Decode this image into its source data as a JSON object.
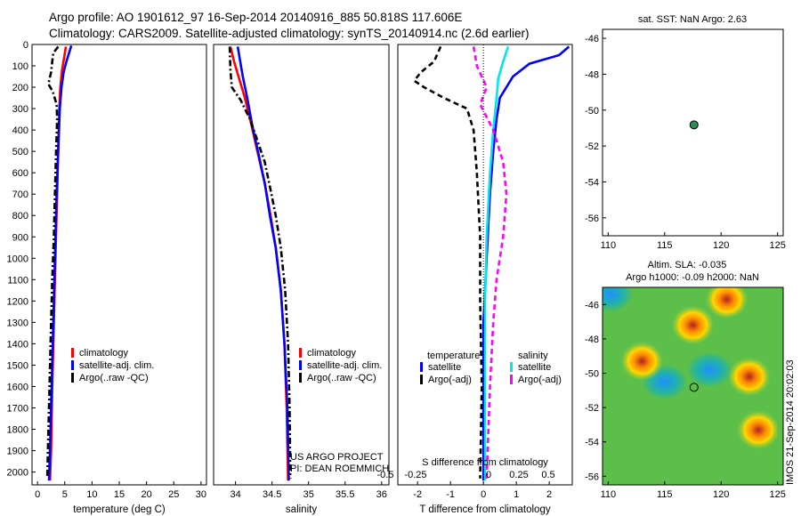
{
  "title_line1": "Argo profile: AO 1901612_97 16-Sep-2014 20140916_885 50.818S 117.606E",
  "title_line2": "Climatology: CARS2009. Satellite-adjusted climatology: synTS_20140914.nc (2.6d earlier)",
  "colors": {
    "climatology": "#ff0000",
    "satellite": "#0000ff",
    "argo": "#000000",
    "sat_salinity": "#00e5ee",
    "argo_salinity": "#ff00ff",
    "float_marker": "#2e8b57"
  },
  "chart_data": [
    {
      "type": "line",
      "panel": "temperature",
      "xlabel": "temperature (deg C)",
      "ylim": [
        2060,
        0
      ],
      "xlim": [
        -1,
        31
      ],
      "xticks": [
        0,
        5,
        10,
        15,
        20,
        25,
        30
      ],
      "yticks": [
        0,
        100,
        200,
        300,
        400,
        500,
        600,
        700,
        800,
        900,
        1000,
        1100,
        1200,
        1300,
        1400,
        1500,
        1600,
        1700,
        1800,
        1900,
        2000
      ],
      "legend": [
        "climatology",
        "satellite-adj. clim.",
        "Argo(..raw -QC)"
      ],
      "series": [
        {
          "name": "climatology",
          "style": "solid",
          "color": "#ff0000",
          "points": [
            [
              5.2,
              10
            ],
            [
              4.9,
              60
            ],
            [
              4.5,
              120
            ],
            [
              4.2,
              200
            ],
            [
              4.0,
              300
            ],
            [
              3.8,
              500
            ],
            [
              3.6,
              700
            ],
            [
              3.3,
              1000
            ],
            [
              3.0,
              1300
            ],
            [
              2.7,
              1600
            ],
            [
              2.5,
              1900
            ],
            [
              2.3,
              2040
            ]
          ]
        },
        {
          "name": "satellite-adj. clim.",
          "style": "solid",
          "color": "#0000ff",
          "points": [
            [
              6.2,
              5
            ],
            [
              5.9,
              30
            ],
            [
              5.3,
              80
            ],
            [
              4.8,
              130
            ],
            [
              4.4,
              200
            ],
            [
              4.1,
              300
            ],
            [
              3.8,
              500
            ],
            [
              3.5,
              700
            ],
            [
              3.2,
              1000
            ],
            [
              2.9,
              1300
            ],
            [
              2.6,
              1600
            ],
            [
              2.3,
              1900
            ],
            [
              2.1,
              2040
            ]
          ]
        },
        {
          "name": "Argo(..raw -QC)",
          "style": "dashdot",
          "color": "#000000",
          "points": [
            [
              3.8,
              10
            ],
            [
              2.9,
              40
            ],
            [
              2.7,
              80
            ],
            [
              2.5,
              130
            ],
            [
              2.0,
              185
            ],
            [
              2.8,
              220
            ],
            [
              3.5,
              280
            ],
            [
              3.6,
              350
            ],
            [
              3.4,
              500
            ],
            [
              3.2,
              700
            ],
            [
              3.0,
              900
            ],
            [
              2.7,
              1100
            ],
            [
              2.5,
              1300
            ],
            [
              2.3,
              1500
            ],
            [
              2.1,
              1700
            ],
            [
              1.9,
              1900
            ],
            [
              1.8,
              2030
            ]
          ]
        }
      ]
    },
    {
      "type": "line",
      "panel": "salinity",
      "xlabel": "salinity",
      "ylim": [
        2060,
        0
      ],
      "xlim": [
        33.7,
        36.1
      ],
      "xticks": [
        34,
        34.5,
        35,
        35.5,
        36
      ],
      "legend": [
        "climatology",
        "satellite-adj. clim.",
        "Argo(..raw -QC)"
      ],
      "annotation": [
        "US ARGO PROJECT",
        "PI: DEAN ROEMMICH"
      ],
      "series": [
        {
          "name": "climatology",
          "style": "solid",
          "color": "#ff0000",
          "points": [
            [
              33.93,
              10
            ],
            [
              33.98,
              80
            ],
            [
              34.05,
              160
            ],
            [
              34.12,
              240
            ],
            [
              34.2,
              350
            ],
            [
              34.3,
              500
            ],
            [
              34.4,
              650
            ],
            [
              34.48,
              800
            ],
            [
              34.55,
              950
            ],
            [
              34.62,
              1150
            ],
            [
              34.67,
              1400
            ],
            [
              34.7,
              1700
            ],
            [
              34.72,
              2040
            ]
          ]
        },
        {
          "name": "satellite-adj. clim.",
          "style": "solid",
          "color": "#0000ff",
          "points": [
            [
              34.03,
              10
            ],
            [
              34.06,
              70
            ],
            [
              34.1,
              150
            ],
            [
              34.16,
              250
            ],
            [
              34.23,
              380
            ],
            [
              34.32,
              520
            ],
            [
              34.4,
              650
            ],
            [
              34.47,
              800
            ],
            [
              34.55,
              950
            ],
            [
              34.62,
              1150
            ],
            [
              34.67,
              1400
            ],
            [
              34.71,
              1700
            ],
            [
              34.73,
              2040
            ]
          ]
        },
        {
          "name": "Argo(..raw -QC)",
          "style": "dashdot",
          "color": "#000000",
          "points": [
            [
              33.92,
              10
            ],
            [
              33.93,
              120
            ],
            [
              33.95,
              200
            ],
            [
              34.07,
              260
            ],
            [
              34.2,
              350
            ],
            [
              34.3,
              450
            ],
            [
              34.4,
              550
            ],
            [
              34.48,
              680
            ],
            [
              34.55,
              800
            ],
            [
              34.62,
              950
            ],
            [
              34.68,
              1150
            ],
            [
              34.72,
              1400
            ],
            [
              34.74,
              1700
            ],
            [
              34.75,
              2030
            ]
          ]
        }
      ]
    },
    {
      "type": "line",
      "panel": "difference",
      "xlabel": "T difference from climatology",
      "xlabel_top": "S difference from climatology",
      "ylim": [
        2060,
        0
      ],
      "xlim": [
        -2.6,
        2.7
      ],
      "xticks": [
        -2,
        -1,
        0,
        1,
        2
      ],
      "sticks": [
        "-0.5",
        "-0.25",
        "0",
        "0.25",
        "0.5"
      ],
      "legend_titles": [
        "temperature",
        "salinity"
      ],
      "legend": [
        "satellite",
        "Argo(-adj)",
        "satellite",
        "Argo(-adj)"
      ],
      "series": [
        {
          "name": "temperature satellite",
          "style": "solid",
          "color": "#0000ff",
          "points": [
            [
              2.6,
              10
            ],
            [
              2.3,
              50
            ],
            [
              1.4,
              90
            ],
            [
              0.9,
              150
            ],
            [
              0.5,
              250
            ],
            [
              0.4,
              350
            ],
            [
              0.3,
              500
            ],
            [
              0.2,
              700
            ],
            [
              0.1,
              1000
            ],
            [
              0.0,
              1300
            ],
            [
              0.0,
              1600
            ],
            [
              0.0,
              2040
            ]
          ]
        },
        {
          "name": "temperature Argo(-adj)",
          "style": "dashed",
          "color": "#000000",
          "points": [
            [
              -1.3,
              10
            ],
            [
              -1.5,
              80
            ],
            [
              -1.9,
              130
            ],
            [
              -2.1,
              170
            ],
            [
              -1.8,
              200
            ],
            [
              -1.2,
              250
            ],
            [
              -0.5,
              300
            ],
            [
              -0.3,
              400
            ],
            [
              -0.2,
              600
            ],
            [
              -0.1,
              900
            ],
            [
              -0.1,
              1200
            ],
            [
              -0.05,
              1600
            ],
            [
              -0.1,
              2030
            ]
          ]
        },
        {
          "name": "salinity satellite",
          "style": "solid",
          "color": "#00e5ee",
          "points": [
            [
              0.75,
              10
            ],
            [
              0.6,
              80
            ],
            [
              0.45,
              160
            ],
            [
              0.4,
              250
            ],
            [
              0.3,
              400
            ],
            [
              0.2,
              600
            ],
            [
              0.1,
              900
            ],
            [
              0.05,
              1200
            ],
            [
              0.05,
              1600
            ],
            [
              0.05,
              2040
            ]
          ]
        },
        {
          "name": "salinity Argo(-adj)",
          "style": "dashed",
          "color": "#ff00ff",
          "points": [
            [
              -0.3,
              10
            ],
            [
              -0.2,
              100
            ],
            [
              0.1,
              200
            ],
            [
              -0.1,
              280
            ],
            [
              0.3,
              400
            ],
            [
              0.6,
              550
            ],
            [
              0.7,
              700
            ],
            [
              0.6,
              900
            ],
            [
              0.4,
              1100
            ],
            [
              0.3,
              1300
            ],
            [
              0.2,
              1600
            ],
            [
              0.1,
              2030
            ]
          ]
        }
      ]
    },
    {
      "type": "scatter",
      "panel": "map-sst",
      "title": "sat. SST: NaN Argo: 2.63",
      "xlim": [
        109.5,
        125.5
      ],
      "ylim": [
        -57,
        -45.5
      ],
      "xticks": [
        110,
        115,
        120,
        125
      ],
      "yticks": [
        -46,
        -48,
        -50,
        -52,
        -54,
        -56
      ],
      "points": [
        [
          117.6,
          -50.82
        ]
      ]
    },
    {
      "type": "heatmap",
      "panel": "map-sla",
      "title_line1": "Altim. SLA: -0.035",
      "title_line2": "Argo h1000: -0.09 h2000: NaN",
      "xlim": [
        109.5,
        125.5
      ],
      "ylim": [
        -56.5,
        -45
      ],
      "xticks": [
        110,
        115,
        120,
        125
      ],
      "yticks": [
        -46,
        -48,
        -50,
        -52,
        -54,
        -56
      ],
      "points": [
        [
          117.6,
          -50.82
        ]
      ],
      "highs": [
        [
          117.5,
          -47.2
        ],
        [
          113.0,
          -49.3
        ],
        [
          122.5,
          -50.2
        ],
        [
          123.3,
          -53.3
        ],
        [
          120.5,
          -45.7
        ]
      ],
      "lows": [
        [
          110.2,
          -45.4
        ],
        [
          115.0,
          -50.5
        ],
        [
          119.0,
          -49.8
        ]
      ]
    }
  ],
  "credit": "IMOS 21-Sep-2014 20:02:03"
}
